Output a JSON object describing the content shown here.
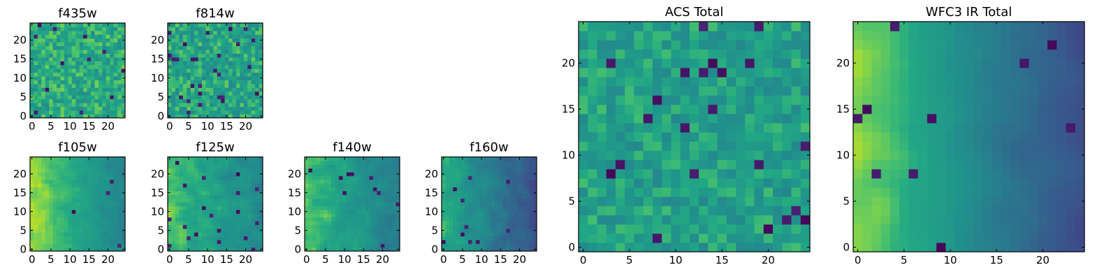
{
  "chart_data": [
    {
      "type": "heatmap",
      "title": "f435w",
      "colormap": "viridis",
      "grid_size": 25,
      "xlim": [
        0,
        24
      ],
      "ylim": [
        0,
        24
      ],
      "xticks": [
        "0",
        "5",
        "10",
        "15",
        "20"
      ],
      "yticks": [
        "0",
        "5",
        "10",
        "15",
        "20"
      ],
      "value_range": [
        0,
        1
      ],
      "mean_level": 0.74,
      "noise": 0.13,
      "smoothness": 0,
      "gradient": [
        0,
        0
      ],
      "dark_fraction": 0.02,
      "seed": 11
    },
    {
      "type": "heatmap",
      "title": "f814w",
      "colormap": "viridis",
      "grid_size": 25,
      "xlim": [
        0,
        24
      ],
      "ylim": [
        0,
        24
      ],
      "xticks": [
        "0",
        "5",
        "10",
        "15",
        "20"
      ],
      "yticks": [
        "0",
        "5",
        "10",
        "15",
        "20"
      ],
      "value_range": [
        0,
        1
      ],
      "mean_level": 0.72,
      "noise": 0.14,
      "smoothness": 0,
      "gradient": [
        0,
        0
      ],
      "dark_fraction": 0.04,
      "seed": 22
    },
    {
      "type": "heatmap",
      "title": "f105w",
      "colormap": "viridis",
      "grid_size": 25,
      "xlim": [
        0,
        24
      ],
      "ylim": [
        0,
        24
      ],
      "xticks": [
        "0",
        "5",
        "10",
        "15",
        "20"
      ],
      "yticks": [
        "0",
        "5",
        "10",
        "15",
        "20"
      ],
      "value_range": [
        0,
        1
      ],
      "mean_level": 0.74,
      "noise": 0.07,
      "smoothness": 1,
      "gradient": [
        -0.18,
        0
      ],
      "dark_fraction": 0.01,
      "seed": 33
    },
    {
      "type": "heatmap",
      "title": "f125w",
      "colormap": "viridis",
      "grid_size": 25,
      "xlim": [
        0,
        24
      ],
      "ylim": [
        0,
        24
      ],
      "xticks": [
        "0",
        "5",
        "10",
        "15",
        "20"
      ],
      "yticks": [
        "0",
        "5",
        "10",
        "15",
        "20"
      ],
      "value_range": [
        0,
        1
      ],
      "mean_level": 0.7,
      "noise": 0.1,
      "smoothness": 1,
      "gradient": [
        -0.12,
        0
      ],
      "dark_fraction": 0.03,
      "seed": 44
    },
    {
      "type": "heatmap",
      "title": "f140w",
      "colormap": "viridis",
      "grid_size": 25,
      "xlim": [
        0,
        24
      ],
      "ylim": [
        0,
        24
      ],
      "xticks": [
        "0",
        "5",
        "10",
        "15",
        "20"
      ],
      "yticks": [
        "0",
        "5",
        "10",
        "15",
        "20"
      ],
      "value_range": [
        0,
        1
      ],
      "mean_level": 0.68,
      "noise": 0.09,
      "smoothness": 1,
      "gradient": [
        -0.15,
        0
      ],
      "dark_fraction": 0.02,
      "seed": 55
    },
    {
      "type": "heatmap",
      "title": "f160w",
      "colormap": "viridis",
      "grid_size": 25,
      "xlim": [
        0,
        24
      ],
      "ylim": [
        0,
        24
      ],
      "xticks": [
        "0",
        "5",
        "10",
        "15",
        "20"
      ],
      "yticks": [
        "0",
        "5",
        "10",
        "15",
        "20"
      ],
      "value_range": [
        0,
        1
      ],
      "mean_level": 0.54,
      "noise": 0.09,
      "smoothness": 1,
      "gradient": [
        -0.22,
        0
      ],
      "dark_fraction": 0.02,
      "seed": 66
    },
    {
      "type": "heatmap",
      "title": "ACS Total",
      "colormap": "viridis",
      "grid_size": 25,
      "xlim": [
        0,
        24
      ],
      "ylim": [
        0,
        24
      ],
      "xticks": [
        "0",
        "5",
        "10",
        "15",
        "20"
      ],
      "yticks": [
        "0",
        "5",
        "10",
        "15",
        "20"
      ],
      "value_range": [
        0,
        1
      ],
      "mean_level": 0.7,
      "noise": 0.12,
      "smoothness": 0,
      "gradient": [
        0,
        0
      ],
      "dark_fraction": 0.025,
      "seed": 77
    },
    {
      "type": "heatmap",
      "title": "WFC3 IR Total",
      "colormap": "viridis",
      "grid_size": 25,
      "xlim": [
        0,
        24
      ],
      "ylim": [
        0,
        24
      ],
      "xticks": [
        "0",
        "5",
        "10",
        "15",
        "20"
      ],
      "yticks": [
        "0",
        "5",
        "10",
        "15",
        "20"
      ],
      "value_range": [
        0,
        1
      ],
      "mean_level": 0.6,
      "noise": 0.05,
      "smoothness": 2,
      "gradient": [
        -0.3,
        0
      ],
      "dark_fraction": 0.012,
      "seed": 88
    }
  ]
}
